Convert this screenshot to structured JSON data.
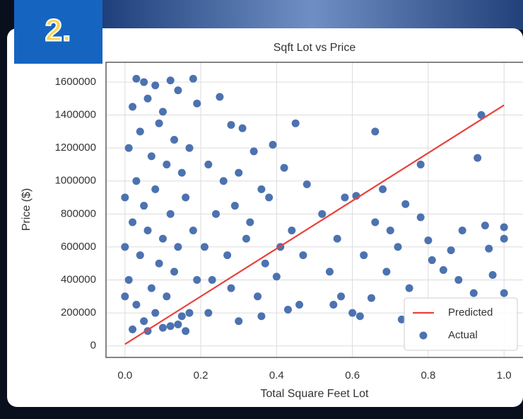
{
  "badge": "2.",
  "chart_data": {
    "type": "scatter",
    "title": "Sqft Lot vs Price",
    "x_label": "Total Square Feet Lot",
    "y_label": "Price ($)",
    "xlim": [
      -0.05,
      1.05
    ],
    "ylim": [
      -70000,
      1720000
    ],
    "xticks": [
      {
        "value": 0,
        "label": "0.0"
      },
      0.2,
      0.4,
      0.6,
      0.8,
      {
        "value": 1,
        "label": "1.0"
      }
    ],
    "yticks": [
      0,
      200000,
      400000,
      600000,
      800000,
      1000000,
      1200000,
      1400000,
      1600000
    ],
    "grid": true,
    "legend": "lower right",
    "series": [
      {
        "name": "Predicted",
        "type": "line",
        "color": "#e8413c",
        "x": [
          0,
          1
        ],
        "values": [
          10000,
          1460000
        ]
      },
      {
        "name": "Actual",
        "type": "scatter",
        "color": "#4c72b0",
        "x": [
          0.03,
          0.05,
          0.08,
          0.12,
          0.02,
          0.06,
          0.1,
          0.14,
          0.04,
          0.09,
          0.13,
          0.01,
          0.07,
          0.11,
          0.03,
          0.08,
          0.15,
          0.0,
          0.05,
          0.12,
          0.02,
          0.06,
          0.1,
          0.14,
          0.0,
          0.04,
          0.09,
          0.13,
          0.01,
          0.07,
          0.11,
          0.03,
          0.08,
          0.15,
          0.0,
          0.05,
          0.12,
          0.02,
          0.06,
          0.1,
          0.14,
          0.18,
          0.19,
          0.17,
          0.16,
          0.18,
          0.19,
          0.17,
          0.16,
          0.25,
          0.28,
          0.31,
          0.34,
          0.39,
          0.45,
          0.22,
          0.26,
          0.3,
          0.36,
          0.42,
          0.24,
          0.29,
          0.33,
          0.38,
          0.44,
          0.21,
          0.27,
          0.32,
          0.37,
          0.41,
          0.23,
          0.28,
          0.35,
          0.4,
          0.46,
          0.22,
          0.3,
          0.36,
          0.43,
          0.48,
          0.47,
          0.52,
          0.56,
          0.58,
          0.61,
          0.66,
          0.68,
          0.74,
          0.78,
          0.94,
          0.93,
          0.54,
          0.57,
          0.6,
          0.63,
          0.66,
          0.69,
          0.72,
          0.75,
          0.78,
          0.81,
          0.84,
          0.86,
          0.89,
          0.92,
          0.95,
          0.96,
          0.97,
          1.0,
          1.0,
          1.0,
          0.55,
          0.62,
          0.65,
          0.7,
          0.8,
          0.88,
          0.73
        ],
        "values": [
          1620000,
          1600000,
          1580000,
          1610000,
          1450000,
          1500000,
          1420000,
          1550000,
          1300000,
          1350000,
          1250000,
          1200000,
          1150000,
          1100000,
          1000000,
          950000,
          1050000,
          900000,
          850000,
          800000,
          750000,
          700000,
          650000,
          600000,
          600000,
          550000,
          500000,
          450000,
          400000,
          350000,
          300000,
          250000,
          200000,
          180000,
          300000,
          150000,
          120000,
          100000,
          90000,
          110000,
          130000,
          1620000,
          1470000,
          1200000,
          900000,
          700000,
          400000,
          200000,
          90000,
          1510000,
          1340000,
          1320000,
          1180000,
          1220000,
          1350000,
          1100000,
          1000000,
          1050000,
          950000,
          1080000,
          800000,
          850000,
          750000,
          900000,
          700000,
          600000,
          550000,
          650000,
          500000,
          600000,
          400000,
          350000,
          300000,
          420000,
          250000,
          200000,
          150000,
          180000,
          220000,
          980000,
          550000,
          800000,
          650000,
          900000,
          910000,
          1300000,
          950000,
          860000,
          1100000,
          1400000,
          1140000,
          450000,
          300000,
          200000,
          550000,
          750000,
          450000,
          600000,
          350000,
          780000,
          520000,
          460000,
          580000,
          700000,
          320000,
          730000,
          590000,
          430000,
          720000,
          650000,
          320000,
          250000,
          180000,
          290000,
          700000,
          640000,
          400000,
          160000
        ]
      }
    ]
  }
}
